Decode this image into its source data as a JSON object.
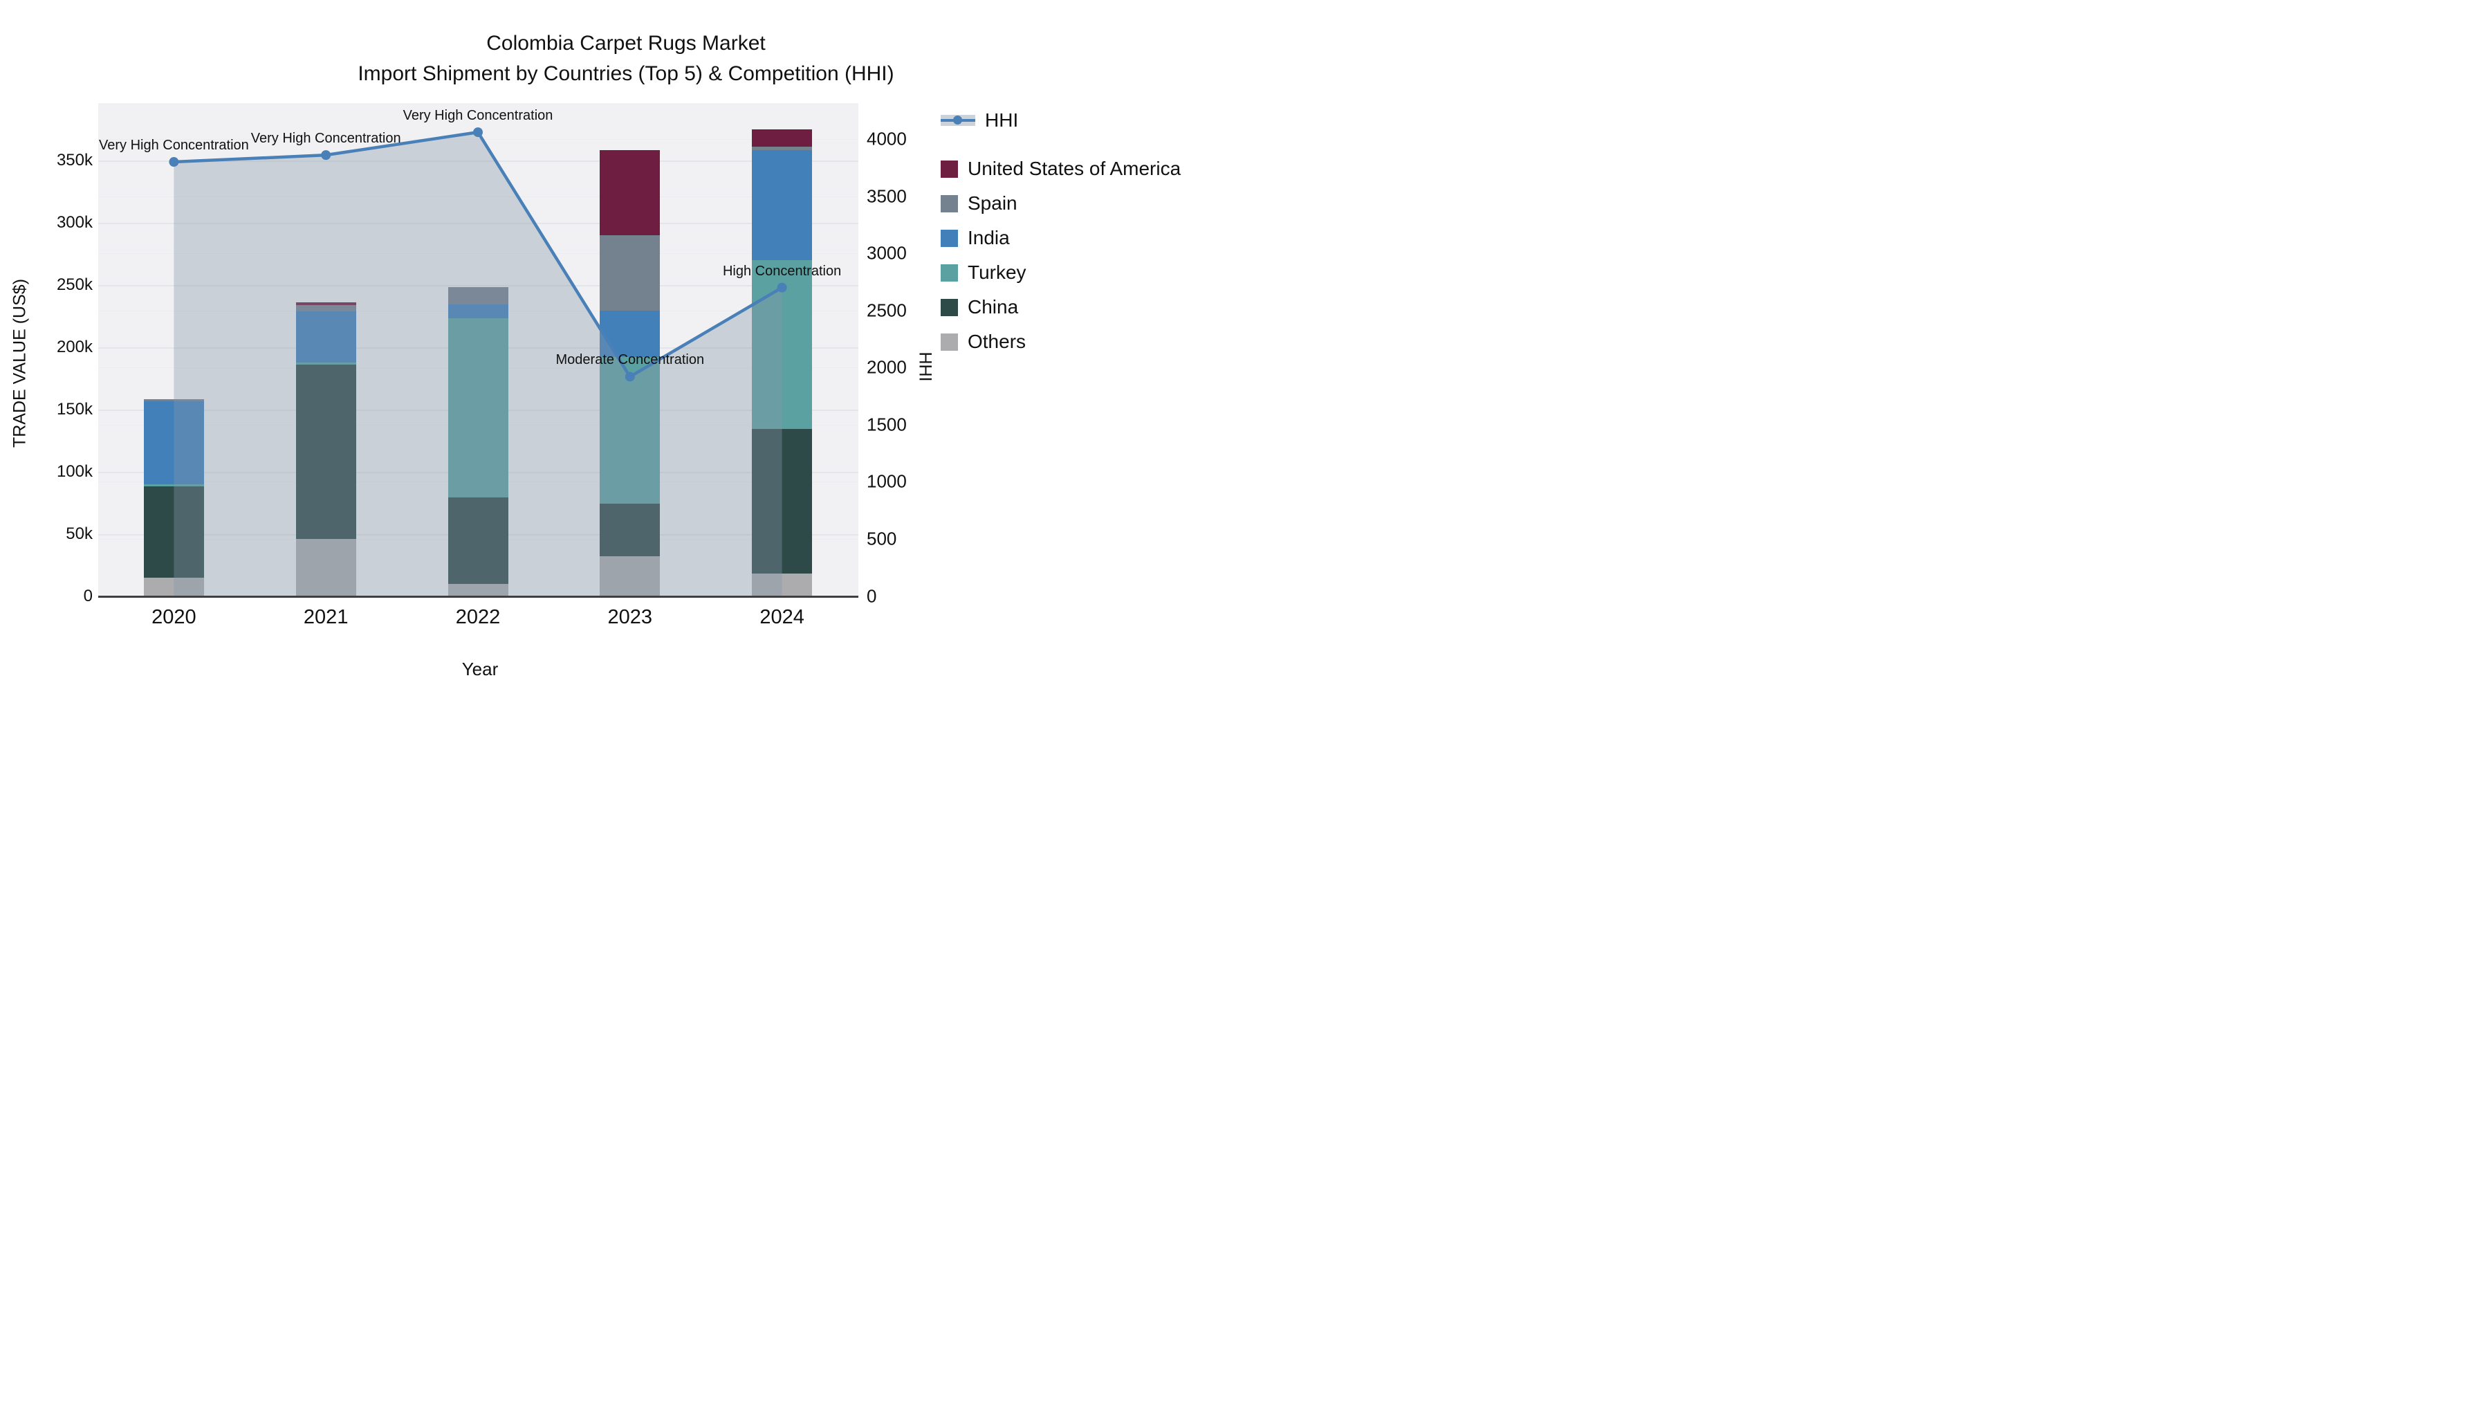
{
  "title": {
    "line1": "Colombia Carpet Rugs Market",
    "line2": "Import Shipment by Countries (Top 5) & Competition (HHI)"
  },
  "axes": {
    "x": {
      "label": "Year",
      "categories": [
        "2020",
        "2021",
        "2022",
        "2023",
        "2024"
      ]
    },
    "left": {
      "label": "TRADE VALUE (US$)",
      "tick_labels": [
        "0",
        "50k",
        "100k",
        "150k",
        "200k",
        "250k",
        "300k",
        "350k"
      ],
      "tick_values": [
        0,
        50000,
        100000,
        150000,
        200000,
        250000,
        300000,
        350000
      ],
      "max": 396000
    },
    "right": {
      "label": "HHI",
      "tick_labels": [
        "0",
        "500",
        "1000",
        "1500",
        "2000",
        "2500",
        "3000",
        "3500",
        "4000"
      ],
      "tick_values": [
        0,
        500,
        1000,
        1500,
        2000,
        2500,
        3000,
        3500,
        4000
      ],
      "max": 4315
    }
  },
  "legend": [
    {
      "label": "HHI",
      "type": "line",
      "color": "#4a80b8"
    },
    {
      "label": "United States of America",
      "type": "swatch",
      "color": "#6d1e41"
    },
    {
      "label": "Spain",
      "type": "swatch",
      "color": "#74818f"
    },
    {
      "label": "India",
      "type": "swatch",
      "color": "#4280ba"
    },
    {
      "label": "Turkey",
      "type": "swatch",
      "color": "#5ca1a1"
    },
    {
      "label": "China",
      "type": "swatch",
      "color": "#2e4a48"
    },
    {
      "label": "Others",
      "type": "swatch",
      "color": "#acacae"
    }
  ],
  "chart_data": {
    "type": "bar+line",
    "categories": [
      "2020",
      "2021",
      "2022",
      "2023",
      "2024"
    ],
    "bar_value_unit": "US$ (trade value)",
    "stack_order": "bottom_to_top",
    "series": [
      {
        "name": "Others",
        "color": "#acacae",
        "values": [
          15000,
          46000,
          10000,
          32000,
          18000
        ]
      },
      {
        "name": "China",
        "color": "#2e4a48",
        "values": [
          73000,
          140000,
          69000,
          42000,
          116000
        ]
      },
      {
        "name": "Turkey",
        "color": "#5ca1a1",
        "values": [
          1500,
          1500,
          144000,
          118000,
          136000
        ]
      },
      {
        "name": "India",
        "color": "#4280ba",
        "values": [
          67000,
          41000,
          11000,
          37000,
          88000
        ]
      },
      {
        "name": "Spain",
        "color": "#74818f",
        "values": [
          1500,
          5000,
          14000,
          61000,
          3000
        ]
      },
      {
        "name": "United States of America",
        "color": "#6d1e41",
        "values": [
          0,
          2500,
          0,
          68000,
          14000
        ]
      }
    ],
    "line_series": {
      "name": "HHI",
      "color": "#4a80b8",
      "fill_color": "rgba(132,150,170,0.36)",
      "values": [
        3800,
        3860,
        4060,
        1920,
        2700
      ]
    },
    "annotations": [
      {
        "category": "2020",
        "text": "Very High Concentration"
      },
      {
        "category": "2021",
        "text": "Very High Concentration"
      },
      {
        "category": "2022",
        "text": "Very High Concentration"
      },
      {
        "category": "2023",
        "text": "Moderate Concentration"
      },
      {
        "category": "2024",
        "text": "High Concentration"
      }
    ],
    "title": "Colombia Carpet Rugs Market — Import Shipment by Countries (Top 5) & Competition (HHI)",
    "xlabel": "Year",
    "ylabel_left": "TRADE VALUE (US$)",
    "ylabel_right": "HHI",
    "ylim_left": [
      0,
      396000
    ],
    "ylim_right": [
      0,
      4315
    ],
    "grid": true,
    "legend_position": "right"
  },
  "colors": {
    "plot_background": "#f1f1f3",
    "paper_background": "#ffffff",
    "grid_major": "#e2e5e9",
    "grid_minor": "#eaecef",
    "axis_line": "#3f3f3f",
    "text": "#111111"
  }
}
